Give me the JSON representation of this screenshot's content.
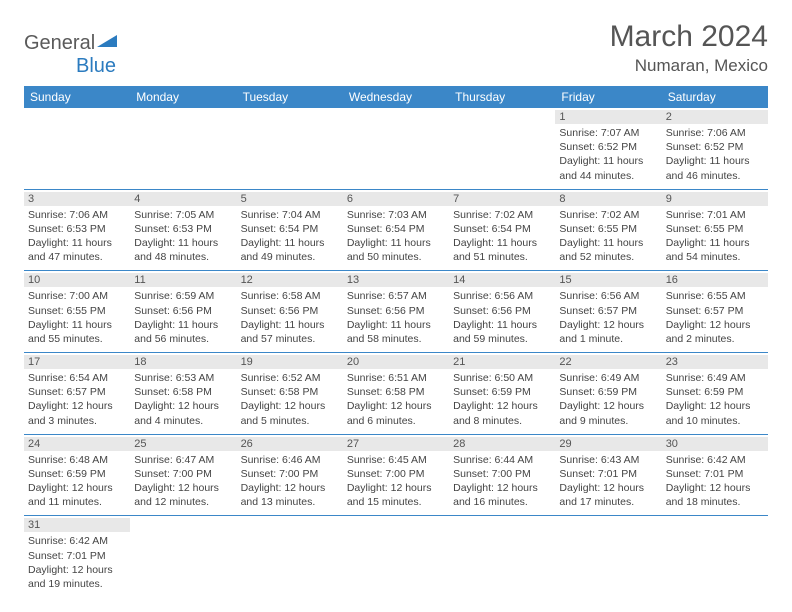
{
  "logo": {
    "text_general": "General",
    "text_blue": "Blue",
    "sail_color": "#2b7bbf"
  },
  "header": {
    "month_title": "March 2024",
    "location": "Numaran, Mexico"
  },
  "colors": {
    "header_bg": "#3b87c8",
    "row_divider": "#3b87c8",
    "daynum_bg": "#e8e8e8"
  },
  "weekdays": [
    "Sunday",
    "Monday",
    "Tuesday",
    "Wednesday",
    "Thursday",
    "Friday",
    "Saturday"
  ],
  "weeks": [
    [
      null,
      null,
      null,
      null,
      null,
      {
        "n": "1",
        "sunrise": "Sunrise: 7:07 AM",
        "sunset": "Sunset: 6:52 PM",
        "day1": "Daylight: 11 hours",
        "day2": "and 44 minutes."
      },
      {
        "n": "2",
        "sunrise": "Sunrise: 7:06 AM",
        "sunset": "Sunset: 6:52 PM",
        "day1": "Daylight: 11 hours",
        "day2": "and 46 minutes."
      }
    ],
    [
      {
        "n": "3",
        "sunrise": "Sunrise: 7:06 AM",
        "sunset": "Sunset: 6:53 PM",
        "day1": "Daylight: 11 hours",
        "day2": "and 47 minutes."
      },
      {
        "n": "4",
        "sunrise": "Sunrise: 7:05 AM",
        "sunset": "Sunset: 6:53 PM",
        "day1": "Daylight: 11 hours",
        "day2": "and 48 minutes."
      },
      {
        "n": "5",
        "sunrise": "Sunrise: 7:04 AM",
        "sunset": "Sunset: 6:54 PM",
        "day1": "Daylight: 11 hours",
        "day2": "and 49 minutes."
      },
      {
        "n": "6",
        "sunrise": "Sunrise: 7:03 AM",
        "sunset": "Sunset: 6:54 PM",
        "day1": "Daylight: 11 hours",
        "day2": "and 50 minutes."
      },
      {
        "n": "7",
        "sunrise": "Sunrise: 7:02 AM",
        "sunset": "Sunset: 6:54 PM",
        "day1": "Daylight: 11 hours",
        "day2": "and 51 minutes."
      },
      {
        "n": "8",
        "sunrise": "Sunrise: 7:02 AM",
        "sunset": "Sunset: 6:55 PM",
        "day1": "Daylight: 11 hours",
        "day2": "and 52 minutes."
      },
      {
        "n": "9",
        "sunrise": "Sunrise: 7:01 AM",
        "sunset": "Sunset: 6:55 PM",
        "day1": "Daylight: 11 hours",
        "day2": "and 54 minutes."
      }
    ],
    [
      {
        "n": "10",
        "sunrise": "Sunrise: 7:00 AM",
        "sunset": "Sunset: 6:55 PM",
        "day1": "Daylight: 11 hours",
        "day2": "and 55 minutes."
      },
      {
        "n": "11",
        "sunrise": "Sunrise: 6:59 AM",
        "sunset": "Sunset: 6:56 PM",
        "day1": "Daylight: 11 hours",
        "day2": "and 56 minutes."
      },
      {
        "n": "12",
        "sunrise": "Sunrise: 6:58 AM",
        "sunset": "Sunset: 6:56 PM",
        "day1": "Daylight: 11 hours",
        "day2": "and 57 minutes."
      },
      {
        "n": "13",
        "sunrise": "Sunrise: 6:57 AM",
        "sunset": "Sunset: 6:56 PM",
        "day1": "Daylight: 11 hours",
        "day2": "and 58 minutes."
      },
      {
        "n": "14",
        "sunrise": "Sunrise: 6:56 AM",
        "sunset": "Sunset: 6:56 PM",
        "day1": "Daylight: 11 hours",
        "day2": "and 59 minutes."
      },
      {
        "n": "15",
        "sunrise": "Sunrise: 6:56 AM",
        "sunset": "Sunset: 6:57 PM",
        "day1": "Daylight: 12 hours",
        "day2": "and 1 minute."
      },
      {
        "n": "16",
        "sunrise": "Sunrise: 6:55 AM",
        "sunset": "Sunset: 6:57 PM",
        "day1": "Daylight: 12 hours",
        "day2": "and 2 minutes."
      }
    ],
    [
      {
        "n": "17",
        "sunrise": "Sunrise: 6:54 AM",
        "sunset": "Sunset: 6:57 PM",
        "day1": "Daylight: 12 hours",
        "day2": "and 3 minutes."
      },
      {
        "n": "18",
        "sunrise": "Sunrise: 6:53 AM",
        "sunset": "Sunset: 6:58 PM",
        "day1": "Daylight: 12 hours",
        "day2": "and 4 minutes."
      },
      {
        "n": "19",
        "sunrise": "Sunrise: 6:52 AM",
        "sunset": "Sunset: 6:58 PM",
        "day1": "Daylight: 12 hours",
        "day2": "and 5 minutes."
      },
      {
        "n": "20",
        "sunrise": "Sunrise: 6:51 AM",
        "sunset": "Sunset: 6:58 PM",
        "day1": "Daylight: 12 hours",
        "day2": "and 6 minutes."
      },
      {
        "n": "21",
        "sunrise": "Sunrise: 6:50 AM",
        "sunset": "Sunset: 6:59 PM",
        "day1": "Daylight: 12 hours",
        "day2": "and 8 minutes."
      },
      {
        "n": "22",
        "sunrise": "Sunrise: 6:49 AM",
        "sunset": "Sunset: 6:59 PM",
        "day1": "Daylight: 12 hours",
        "day2": "and 9 minutes."
      },
      {
        "n": "23",
        "sunrise": "Sunrise: 6:49 AM",
        "sunset": "Sunset: 6:59 PM",
        "day1": "Daylight: 12 hours",
        "day2": "and 10 minutes."
      }
    ],
    [
      {
        "n": "24",
        "sunrise": "Sunrise: 6:48 AM",
        "sunset": "Sunset: 6:59 PM",
        "day1": "Daylight: 12 hours",
        "day2": "and 11 minutes."
      },
      {
        "n": "25",
        "sunrise": "Sunrise: 6:47 AM",
        "sunset": "Sunset: 7:00 PM",
        "day1": "Daylight: 12 hours",
        "day2": "and 12 minutes."
      },
      {
        "n": "26",
        "sunrise": "Sunrise: 6:46 AM",
        "sunset": "Sunset: 7:00 PM",
        "day1": "Daylight: 12 hours",
        "day2": "and 13 minutes."
      },
      {
        "n": "27",
        "sunrise": "Sunrise: 6:45 AM",
        "sunset": "Sunset: 7:00 PM",
        "day1": "Daylight: 12 hours",
        "day2": "and 15 minutes."
      },
      {
        "n": "28",
        "sunrise": "Sunrise: 6:44 AM",
        "sunset": "Sunset: 7:00 PM",
        "day1": "Daylight: 12 hours",
        "day2": "and 16 minutes."
      },
      {
        "n": "29",
        "sunrise": "Sunrise: 6:43 AM",
        "sunset": "Sunset: 7:01 PM",
        "day1": "Daylight: 12 hours",
        "day2": "and 17 minutes."
      },
      {
        "n": "30",
        "sunrise": "Sunrise: 6:42 AM",
        "sunset": "Sunset: 7:01 PM",
        "day1": "Daylight: 12 hours",
        "day2": "and 18 minutes."
      }
    ],
    [
      {
        "n": "31",
        "sunrise": "Sunrise: 6:42 AM",
        "sunset": "Sunset: 7:01 PM",
        "day1": "Daylight: 12 hours",
        "day2": "and 19 minutes."
      },
      null,
      null,
      null,
      null,
      null,
      null
    ]
  ]
}
